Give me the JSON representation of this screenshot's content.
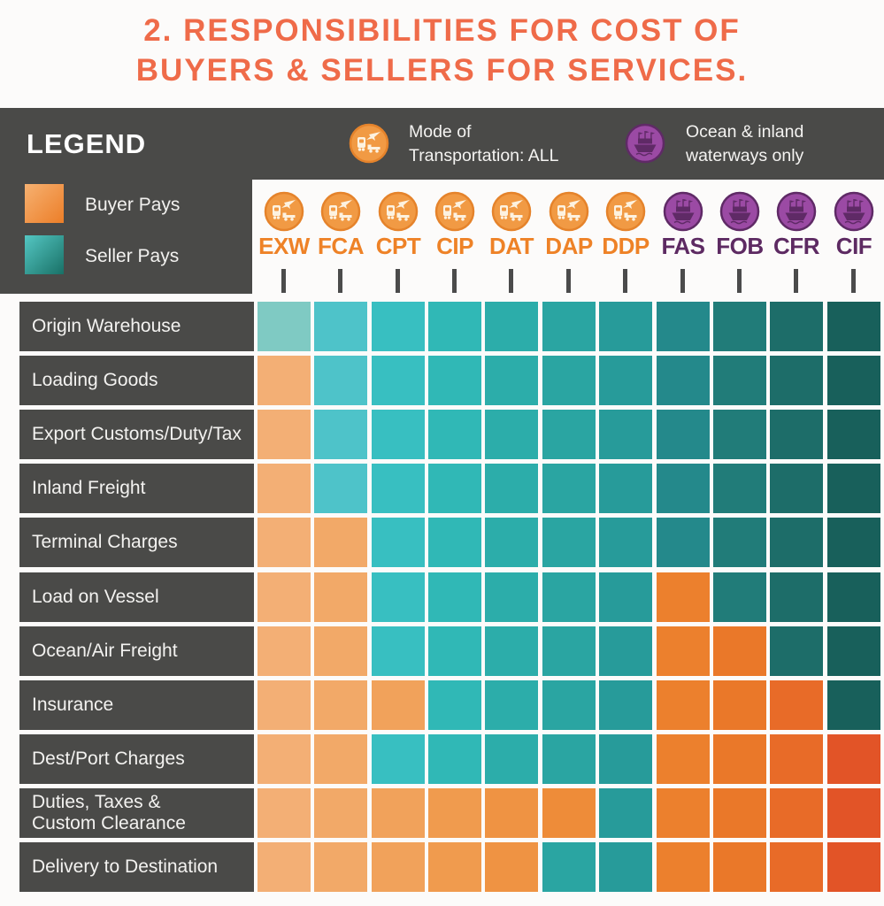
{
  "title": {
    "line1": "2. RESPONSIBILITIES FOR COST OF",
    "line2": "BUYERS & SELLERS FOR SERVICES.",
    "color": "#ef6b49"
  },
  "legend": {
    "heading": "LEGEND",
    "buyer_label": "Buyer Pays",
    "seller_label": "Seller Pays",
    "transport_note_line1": "Mode of",
    "transport_note_line2": "Transportation: ALL",
    "ocean_note_line1": "Ocean & inland",
    "ocean_note_line2": "waterways only"
  },
  "colors": {
    "header_bg": "#4a4a48",
    "row_label_bg": "#4a4a48",
    "title_orange": "#ef6b49",
    "column_label_orange": "#ee8227",
    "column_label_purple": "#5d2a62",
    "transport_circle_fill": "#f19a44",
    "transport_circle_ring": "#e5832b",
    "ship_circle_fill": "#9b4aa4",
    "ship_circle_ring": "#5f2a66",
    "buyer_ramp": [
      "#f3af75",
      "#f2a968",
      "#f1a25b",
      "#f09b4e",
      "#ef9343",
      "#ee8c39",
      "#ed8632",
      "#ec802d",
      "#ea7829",
      "#e86b28",
      "#e25427"
    ],
    "seller_ramp": [
      "#7fcac3",
      "#4ec3c9",
      "#38bfc1",
      "#30b8b6",
      "#2cadaa",
      "#2aa5a2",
      "#279b9a",
      "#24898b",
      "#217c79",
      "#1d6d69",
      "#18605b"
    ]
  },
  "columns": [
    {
      "code": "EXW",
      "mode": "all"
    },
    {
      "code": "FCA",
      "mode": "all"
    },
    {
      "code": "CPT",
      "mode": "all"
    },
    {
      "code": "CIP",
      "mode": "all"
    },
    {
      "code": "DAT",
      "mode": "all"
    },
    {
      "code": "DAP",
      "mode": "all"
    },
    {
      "code": "DDP",
      "mode": "all"
    },
    {
      "code": "FAS",
      "mode": "ocean"
    },
    {
      "code": "FOB",
      "mode": "ocean"
    },
    {
      "code": "CFR",
      "mode": "ocean"
    },
    {
      "code": "CIF",
      "mode": "ocean"
    }
  ],
  "rows": [
    {
      "label": "Origin Warehouse",
      "cells": [
        "S",
        "S",
        "S",
        "S",
        "S",
        "S",
        "S",
        "S",
        "S",
        "S",
        "S"
      ]
    },
    {
      "label": "Loading Goods",
      "cells": [
        "B",
        "S",
        "S",
        "S",
        "S",
        "S",
        "S",
        "S",
        "S",
        "S",
        "S"
      ]
    },
    {
      "label": "Export Customs/Duty/Tax",
      "cells": [
        "B",
        "S",
        "S",
        "S",
        "S",
        "S",
        "S",
        "S",
        "S",
        "S",
        "S"
      ]
    },
    {
      "label": "Inland Freight",
      "cells": [
        "B",
        "S",
        "S",
        "S",
        "S",
        "S",
        "S",
        "S",
        "S",
        "S",
        "S"
      ]
    },
    {
      "label": "Terminal Charges",
      "cells": [
        "B",
        "B",
        "S",
        "S",
        "S",
        "S",
        "S",
        "S",
        "S",
        "S",
        "S"
      ]
    },
    {
      "label": "Load on Vessel",
      "cells": [
        "B",
        "B",
        "S",
        "S",
        "S",
        "S",
        "S",
        "B",
        "S",
        "S",
        "S"
      ]
    },
    {
      "label": "Ocean/Air Freight",
      "cells": [
        "B",
        "B",
        "S",
        "S",
        "S",
        "S",
        "S",
        "B",
        "B",
        "S",
        "S"
      ]
    },
    {
      "label": "Insurance",
      "cells": [
        "B",
        "B",
        "B",
        "S",
        "S",
        "S",
        "S",
        "B",
        "B",
        "B",
        "S"
      ]
    },
    {
      "label": "Dest/Port Charges",
      "cells": [
        "B",
        "B",
        "S",
        "S",
        "S",
        "S",
        "S",
        "B",
        "B",
        "B",
        "B"
      ]
    },
    {
      "label": "Duties, Taxes &",
      "label2": "Custom Clearance",
      "cells": [
        "B",
        "B",
        "B",
        "B",
        "B",
        "B",
        "S",
        "B",
        "B",
        "B",
        "B"
      ]
    },
    {
      "label": "Delivery to Destination",
      "cells": [
        "B",
        "B",
        "B",
        "B",
        "B",
        "S",
        "S",
        "B",
        "B",
        "B",
        "B"
      ]
    }
  ],
  "chart_data": {
    "type": "heatmap",
    "title": "2. RESPONSIBILITIES FOR COST OF BUYERS & SELLERS FOR SERVICES.",
    "columns": [
      "EXW",
      "FCA",
      "CPT",
      "CIP",
      "DAT",
      "DAP",
      "DDP",
      "FAS",
      "FOB",
      "CFR",
      "CIF"
    ],
    "column_transport_modes": [
      "all",
      "all",
      "all",
      "all",
      "all",
      "all",
      "all",
      "ocean",
      "ocean",
      "ocean",
      "ocean"
    ],
    "rows": [
      "Origin Warehouse",
      "Loading Goods",
      "Export Customs/Duty/Tax",
      "Inland Freight",
      "Terminal Charges",
      "Load on Vessel",
      "Ocean/Air Freight",
      "Insurance",
      "Dest/Port Charges",
      "Duties, Taxes & Custom Clearance",
      "Delivery to Destination"
    ],
    "values": [
      [
        "seller",
        "seller",
        "seller",
        "seller",
        "seller",
        "seller",
        "seller",
        "seller",
        "seller",
        "seller",
        "seller"
      ],
      [
        "buyer",
        "seller",
        "seller",
        "seller",
        "seller",
        "seller",
        "seller",
        "seller",
        "seller",
        "seller",
        "seller"
      ],
      [
        "buyer",
        "seller",
        "seller",
        "seller",
        "seller",
        "seller",
        "seller",
        "seller",
        "seller",
        "seller",
        "seller"
      ],
      [
        "buyer",
        "seller",
        "seller",
        "seller",
        "seller",
        "seller",
        "seller",
        "seller",
        "seller",
        "seller",
        "seller"
      ],
      [
        "buyer",
        "buyer",
        "seller",
        "seller",
        "seller",
        "seller",
        "seller",
        "seller",
        "seller",
        "seller",
        "seller"
      ],
      [
        "buyer",
        "buyer",
        "seller",
        "seller",
        "seller",
        "seller",
        "seller",
        "buyer",
        "seller",
        "seller",
        "seller"
      ],
      [
        "buyer",
        "buyer",
        "seller",
        "seller",
        "seller",
        "seller",
        "seller",
        "buyer",
        "buyer",
        "seller",
        "seller"
      ],
      [
        "buyer",
        "buyer",
        "buyer",
        "seller",
        "seller",
        "seller",
        "seller",
        "buyer",
        "buyer",
        "buyer",
        "seller"
      ],
      [
        "buyer",
        "buyer",
        "seller",
        "seller",
        "seller",
        "seller",
        "seller",
        "buyer",
        "buyer",
        "buyer",
        "buyer"
      ],
      [
        "buyer",
        "buyer",
        "buyer",
        "buyer",
        "buyer",
        "buyer",
        "seller",
        "buyer",
        "buyer",
        "buyer",
        "buyer"
      ],
      [
        "buyer",
        "buyer",
        "buyer",
        "buyer",
        "buyer",
        "seller",
        "seller",
        "buyer",
        "buyer",
        "buyer",
        "buyer"
      ]
    ],
    "legend": {
      "buyer": "orange = Buyer Pays",
      "seller": "teal = Seller Pays"
    },
    "layout": "rows are cost items, columns are Incoterms; cell color gradient darkens left-to-right"
  }
}
